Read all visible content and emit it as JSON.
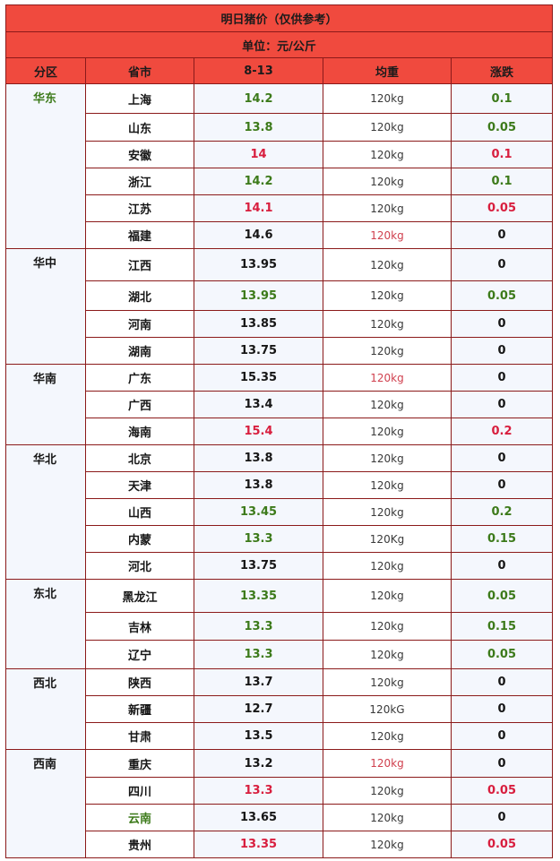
{
  "title": "明日猪价（仅供参考）",
  "unit": "单位：元/公斤",
  "columns": [
    "分区",
    "省市",
    "8-13",
    "均重",
    "涨跌"
  ],
  "colors": {
    "header_bg": "#f04a3e",
    "green": "#3c7a1a",
    "red": "#d81e3e",
    "dark": "#161616",
    "date_yellow": "#fff200"
  },
  "groups": [
    {
      "region": "华东",
      "region_color": "green",
      "rows": [
        {
          "prov": "上海",
          "prov_color": "dark",
          "price": "14.2",
          "price_color": "green",
          "weight": "120kg",
          "weight_color": "normal",
          "change": "0.1",
          "change_color": "green"
        },
        {
          "prov": "山东",
          "prov_color": "dark",
          "price": "13.8",
          "price_color": "green",
          "weight": "120kg",
          "weight_color": "normal",
          "change": "0.05",
          "change_color": "green"
        },
        {
          "prov": "安徽",
          "prov_color": "dark",
          "price": "14",
          "price_color": "red",
          "weight": "120kg",
          "weight_color": "normal",
          "change": "0.1",
          "change_color": "red"
        },
        {
          "prov": "浙江",
          "prov_color": "dark",
          "price": "14.2",
          "price_color": "green",
          "weight": "120kg",
          "weight_color": "normal",
          "change": "0.1",
          "change_color": "green"
        },
        {
          "prov": "江苏",
          "prov_color": "dark",
          "price": "14.1",
          "price_color": "red",
          "weight": "120kg",
          "weight_color": "normal",
          "change": "0.05",
          "change_color": "red"
        },
        {
          "prov": "福建",
          "prov_color": "dark",
          "price": "14.6",
          "price_color": "dark",
          "weight": "120kg",
          "weight_color": "red",
          "change": "0",
          "change_color": "dark"
        }
      ]
    },
    {
      "region": "华中",
      "region_color": "dark",
      "rows": [
        {
          "prov": "江西",
          "prov_color": "dark",
          "price": "13.95",
          "price_color": "dark",
          "weight": "120kg",
          "weight_color": "normal",
          "change": "0",
          "change_color": "dark"
        },
        {
          "prov": "湖北",
          "prov_color": "dark",
          "price": "13.95",
          "price_color": "green",
          "weight": "120kg",
          "weight_color": "normal",
          "change": "0.05",
          "change_color": "green"
        },
        {
          "prov": "河南",
          "prov_color": "dark",
          "price": "13.85",
          "price_color": "dark",
          "weight": "120kg",
          "weight_color": "normal",
          "change": "0",
          "change_color": "dark"
        },
        {
          "prov": "湖南",
          "prov_color": "dark",
          "price": "13.75",
          "price_color": "dark",
          "weight": "120kg",
          "weight_color": "normal",
          "change": "0",
          "change_color": "dark"
        }
      ]
    },
    {
      "region": "华南",
      "region_color": "dark",
      "rows": [
        {
          "prov": "广东",
          "prov_color": "dark",
          "price": "15.35",
          "price_color": "dark",
          "weight": "120kg",
          "weight_color": "red",
          "change": "0",
          "change_color": "dark"
        },
        {
          "prov": "广西",
          "prov_color": "dark",
          "price": "13.4",
          "price_color": "dark",
          "weight": "120kg",
          "weight_color": "normal",
          "change": "0",
          "change_color": "dark"
        },
        {
          "prov": "海南",
          "prov_color": "dark",
          "price": "15.4",
          "price_color": "red",
          "weight": "120kg",
          "weight_color": "normal",
          "change": "0.2",
          "change_color": "red"
        }
      ]
    },
    {
      "region": "华北",
      "region_color": "dark",
      "rows": [
        {
          "prov": "北京",
          "prov_color": "dark",
          "price": "13.8",
          "price_color": "dark",
          "weight": "120kg",
          "weight_color": "normal",
          "change": "0",
          "change_color": "dark"
        },
        {
          "prov": "天津",
          "prov_color": "dark",
          "price": "13.8",
          "price_color": "dark",
          "weight": "120kg",
          "weight_color": "normal",
          "change": "0",
          "change_color": "dark"
        },
        {
          "prov": "山西",
          "prov_color": "dark",
          "price": "13.45",
          "price_color": "green",
          "weight": "120kg",
          "weight_color": "normal",
          "change": "0.2",
          "change_color": "green"
        },
        {
          "prov": "内蒙",
          "prov_color": "dark",
          "price": "13.3",
          "price_color": "green",
          "weight": "120Kg",
          "weight_color": "normal",
          "change": "0.15",
          "change_color": "green"
        },
        {
          "prov": "河北",
          "prov_color": "dark",
          "price": "13.75",
          "price_color": "dark",
          "weight": "120kg",
          "weight_color": "normal",
          "change": "0",
          "change_color": "dark"
        }
      ]
    },
    {
      "region": "东北",
      "region_color": "dark",
      "rows": [
        {
          "prov": "黑龙江",
          "prov_color": "dark",
          "price": "13.35",
          "price_color": "green",
          "weight": "120kg",
          "weight_color": "normal",
          "change": "0.05",
          "change_color": "green"
        },
        {
          "prov": "吉林",
          "prov_color": "dark",
          "price": "13.3",
          "price_color": "green",
          "weight": "120kg",
          "weight_color": "normal",
          "change": "0.15",
          "change_color": "green"
        },
        {
          "prov": "辽宁",
          "prov_color": "dark",
          "price": "13.3",
          "price_color": "green",
          "weight": "120kg",
          "weight_color": "normal",
          "change": "0.05",
          "change_color": "green"
        }
      ]
    },
    {
      "region": "西北",
      "region_color": "dark",
      "rows": [
        {
          "prov": "陕西",
          "prov_color": "dark",
          "price": "13.7",
          "price_color": "dark",
          "weight": "120kg",
          "weight_color": "normal",
          "change": "0",
          "change_color": "dark"
        },
        {
          "prov": "新疆",
          "prov_color": "dark",
          "price": "12.7",
          "price_color": "dark",
          "weight": "120kG",
          "weight_color": "normal",
          "change": "0",
          "change_color": "dark"
        },
        {
          "prov": "甘肃",
          "prov_color": "dark",
          "price": "13.5",
          "price_color": "dark",
          "weight": "120kg",
          "weight_color": "normal",
          "change": "0",
          "change_color": "dark"
        }
      ]
    },
    {
      "region": "西南",
      "region_color": "dark",
      "rows": [
        {
          "prov": "重庆",
          "prov_color": "dark",
          "price": "13.2",
          "price_color": "dark",
          "weight": "120kg",
          "weight_color": "red",
          "change": "0",
          "change_color": "dark"
        },
        {
          "prov": "四川",
          "prov_color": "dark",
          "price": "13.3",
          "price_color": "red",
          "weight": "120kg",
          "weight_color": "normal",
          "change": "0.05",
          "change_color": "red"
        },
        {
          "prov": "云南",
          "prov_color": "green",
          "price": "13.65",
          "price_color": "dark",
          "weight": "120kg",
          "weight_color": "normal",
          "change": "0",
          "change_color": "dark"
        },
        {
          "prov": "贵州",
          "prov_color": "dark",
          "price": "13.35",
          "price_color": "red",
          "weight": "120kg",
          "weight_color": "normal",
          "change": "0.05",
          "change_color": "red"
        }
      ]
    }
  ]
}
